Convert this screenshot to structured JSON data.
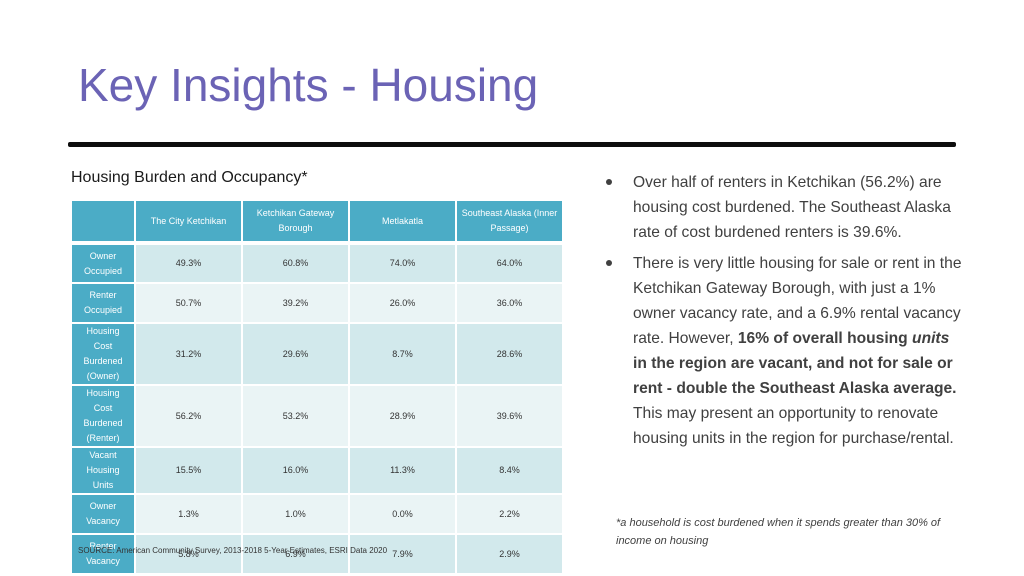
{
  "slide": {
    "title": "Key Insights - Housing"
  },
  "table": {
    "caption": "Housing Burden and Occupancy*",
    "columns": [
      "",
      "The City Ketchikan",
      "Ketchikan Gateway Borough",
      "Metlakatla",
      "Southeast Alaska (Inner Passage)"
    ],
    "rows": [
      {
        "label": "Owner Occupied",
        "values": [
          "49.3%",
          "60.8%",
          "74.0%",
          "64.0%"
        ]
      },
      {
        "label": "Renter Occupied",
        "values": [
          "50.7%",
          "39.2%",
          "26.0%",
          "36.0%"
        ]
      },
      {
        "label": "Housing Cost Burdened (Owner)",
        "values": [
          "31.2%",
          "29.6%",
          "8.7%",
          "28.6%"
        ]
      },
      {
        "label": "Housing Cost Burdened (Renter)",
        "values": [
          "56.2%",
          "53.2%",
          "28.9%",
          "39.6%"
        ]
      },
      {
        "label": "Vacant Housing Units",
        "values": [
          "15.5%",
          "16.0%",
          "11.3%",
          "8.4%"
        ]
      },
      {
        "label": "Owner Vacancy",
        "values": [
          "1.3%",
          "1.0%",
          "0.0%",
          "2.2%"
        ]
      },
      {
        "label": "Renter Vacancy",
        "values": [
          "5.8%",
          "6.9%",
          "7.9%",
          "2.9%"
        ]
      }
    ],
    "source": "SOURCE: American Community Survey, 2013-2018 5-Year Estimates, ESRI Data 2020"
  },
  "insights": {
    "bullet1": "Over half of renters in Ketchikan (56.2%) are housing cost burdened. The Southeast Alaska rate of cost burdened renters is 39.6%.",
    "bullet2": {
      "part1": "There is very little housing for sale or rent in the Ketchikan Gateway Borough, with just a 1% owner vacancy rate, and a 6.9% rental vacancy rate. However, ",
      "bold1": "16% of overall housing ",
      "bold_italic": "units",
      "bold2": " in the region are vacant, and not for sale or rent - double the Southeast Alaska average.",
      "part2": " This may present an opportunity to renovate housing units in the region for purchase/rental."
    },
    "footnote": "*a household is cost burdened when it spends greater than 30% of income on housing"
  },
  "colors": {
    "title": "#6b63b5",
    "header_fill": "#4bacc6",
    "row_fill_dark": "#d2e9ec",
    "row_fill_light": "#eaf4f5",
    "rule": "#0d0d0d"
  }
}
